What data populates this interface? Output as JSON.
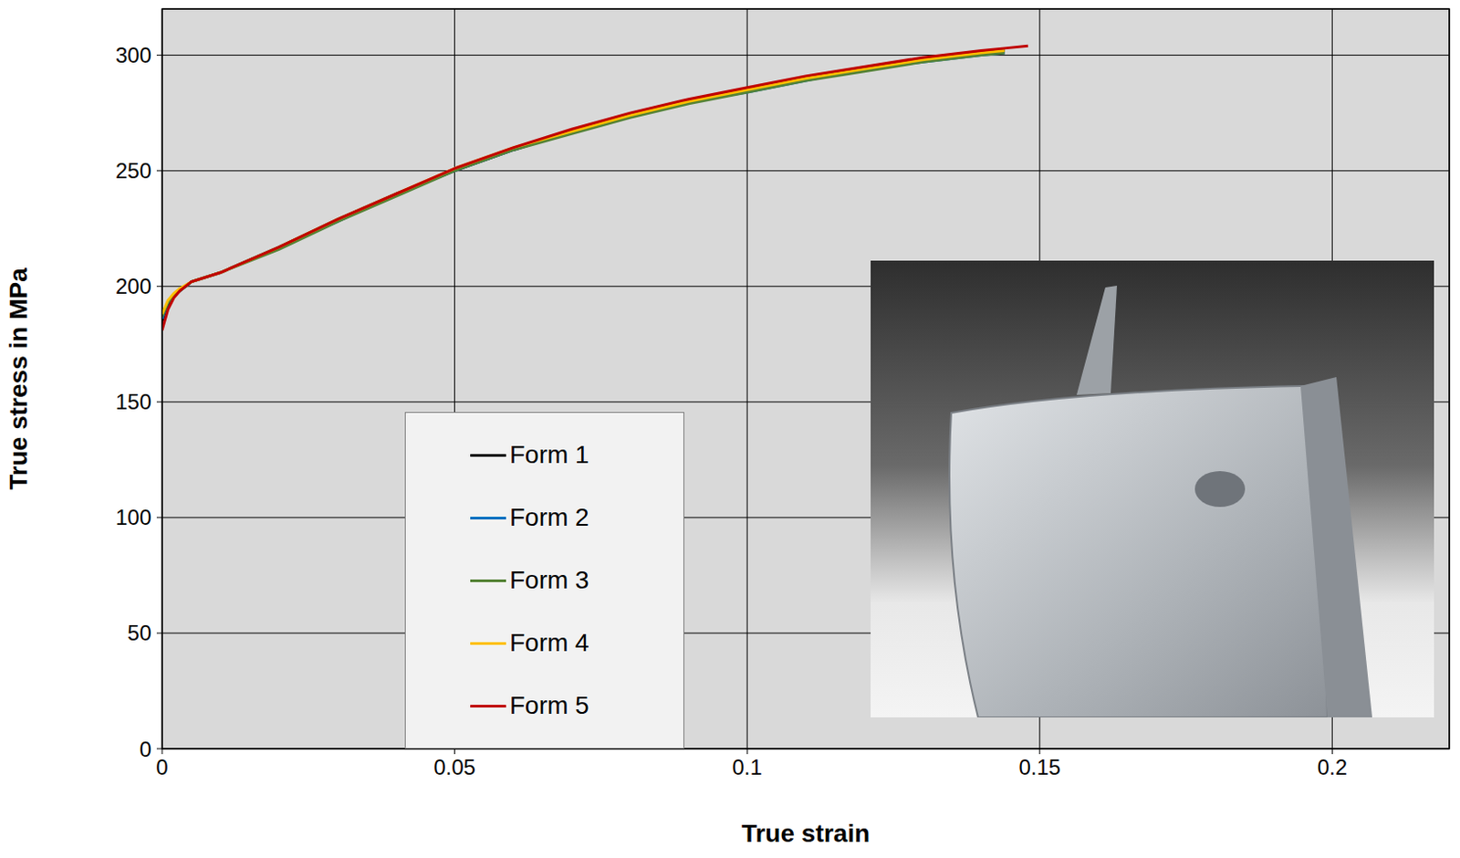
{
  "chart_data": {
    "type": "line",
    "x_label": "True strain",
    "y_label": "True stress in MPa",
    "x": [
      0,
      0.001,
      0.002,
      0.003,
      0.005,
      0.01,
      0.02,
      0.03,
      0.04,
      0.05,
      0.06,
      0.07,
      0.08,
      0.09,
      0.1,
      0.11,
      0.12,
      0.13,
      0.14,
      0.144,
      0.148
    ],
    "series": [
      {
        "name": "Form 1",
        "color": "#000000",
        "values": [
          185,
          192,
          196,
          198,
          202,
          206,
          217,
          229,
          240,
          250,
          259,
          267,
          274,
          280,
          285,
          290,
          294,
          298,
          301,
          302,
          null
        ]
      },
      {
        "name": "Form 2",
        "color": "#0070c0",
        "values": [
          186,
          193,
          196,
          198,
          202,
          206,
          217,
          228,
          240,
          250,
          259,
          267,
          274,
          280,
          284,
          289,
          294,
          297,
          300,
          301,
          null
        ]
      },
      {
        "name": "Form 3",
        "color": "#548235",
        "values": [
          187,
          193,
          196,
          198,
          202,
          206,
          216,
          228,
          239,
          250,
          259,
          266,
          273,
          279,
          284,
          289,
          293,
          297,
          300,
          301,
          null
        ]
      },
      {
        "name": "Form 4",
        "color": "#ffc000",
        "values": [
          188,
          194,
          197,
          199,
          202,
          206,
          217,
          229,
          240,
          251,
          260,
          267,
          274,
          280,
          285,
          290,
          294,
          298,
          301,
          302,
          null
        ]
      },
      {
        "name": "Form 5",
        "color": "#c00000",
        "values": [
          181,
          190,
          195,
          198,
          202,
          206,
          217,
          229,
          240,
          251,
          260,
          268,
          275,
          281,
          286,
          291,
          295,
          299,
          302,
          303,
          304
        ]
      }
    ],
    "xlim": [
      0,
      0.22
    ],
    "ylim": [
      0,
      320
    ],
    "xticks": [
      0,
      0.05,
      0.1,
      0.15,
      0.2
    ],
    "yticks": [
      0,
      50,
      100,
      150,
      200,
      250,
      300
    ],
    "grid": true,
    "legend": "lower center"
  }
}
